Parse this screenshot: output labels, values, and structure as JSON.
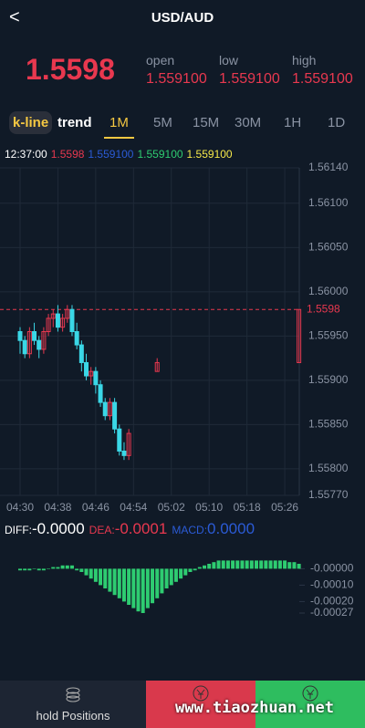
{
  "header": {
    "back": "<",
    "title": "USD/AUD"
  },
  "price": "1.5598",
  "stats": [
    {
      "label": "open",
      "value": "1.559100"
    },
    {
      "label": "low",
      "value": "1.559100"
    },
    {
      "label": "high",
      "value": "1.559100"
    }
  ],
  "tabs": [
    "k-line",
    "trend",
    "1M",
    "5M",
    "15M",
    "30M",
    "1H",
    "1D"
  ],
  "info": {
    "time": "12:37:00",
    "values": [
      {
        "text": "1.5598",
        "color": "#e8384f"
      },
      {
        "text": "1.559100",
        "color": "#2b5bd6"
      },
      {
        "text": "1.559100",
        "color": "#2ecc71"
      },
      {
        "text": "1.559100",
        "color": "#f5e84a"
      }
    ]
  },
  "chart_data": [
    {
      "type": "candlestick",
      "categories": [
        "04:30",
        null,
        null,
        null,
        null,
        null,
        null,
        null,
        "04:38",
        null,
        null,
        null,
        null,
        null,
        null,
        null,
        "04:46",
        null,
        null,
        null,
        null,
        null,
        null,
        null,
        "04:54",
        null,
        null,
        null,
        null,
        null,
        null,
        null,
        "05:02",
        null,
        null,
        null,
        null,
        null,
        null,
        null,
        "05:10",
        null,
        null,
        null,
        null,
        null,
        null,
        null,
        "05:18",
        null,
        null,
        null,
        null,
        null,
        null,
        null,
        "05:26",
        null,
        null,
        null
      ],
      "open": [
        1.55955,
        1.55945,
        1.5593,
        1.55955,
        1.55945,
        1.55935,
        1.55955,
        1.5597,
        1.55975,
        1.5596,
        1.5597,
        1.5598,
        1.55955,
        1.5594,
        1.5592,
        1.55905,
        1.5591,
        1.55895,
        1.55875,
        1.5586,
        1.55875,
        1.55845,
        1.5582,
        1.55815,
        null,
        null,
        null,
        null,
        null,
        1.5591,
        null,
        null,
        null,
        null,
        null,
        null,
        null,
        null,
        null,
        null,
        null,
        null,
        null,
        null,
        null,
        null,
        null,
        null,
        null,
        null,
        null,
        null,
        null,
        null,
        null,
        null,
        null,
        null,
        null,
        1.5592
      ],
      "high": [
        1.5596,
        1.5595,
        1.5596,
        1.55965,
        1.5595,
        1.5596,
        1.55975,
        1.5598,
        1.55985,
        1.55975,
        1.55985,
        1.55985,
        1.55965,
        1.55945,
        1.5593,
        1.55915,
        1.55915,
        1.559,
        1.5588,
        1.5588,
        1.5588,
        1.5585,
        1.5583,
        1.55845,
        null,
        null,
        null,
        null,
        null,
        1.55925,
        null,
        null,
        null,
        null,
        null,
        null,
        null,
        null,
        null,
        null,
        null,
        null,
        null,
        null,
        null,
        null,
        null,
        null,
        null,
        null,
        null,
        null,
        null,
        null,
        null,
        null,
        null,
        null,
        null,
        1.5598
      ],
      "low": [
        1.5593,
        1.55925,
        1.55925,
        1.5594,
        1.55925,
        1.5593,
        1.5595,
        1.5596,
        1.55955,
        1.55955,
        1.55965,
        1.5595,
        1.55935,
        1.5591,
        1.559,
        1.55895,
        1.55885,
        1.5587,
        1.55855,
        1.55855,
        1.5584,
        1.55815,
        1.5581,
        1.5581,
        null,
        null,
        null,
        null,
        null,
        1.5591,
        null,
        null,
        null,
        null,
        null,
        null,
        null,
        null,
        null,
        null,
        null,
        null,
        null,
        null,
        null,
        null,
        null,
        null,
        null,
        null,
        null,
        null,
        null,
        null,
        null,
        null,
        null,
        null,
        null,
        1.5592
      ],
      "close": [
        1.55945,
        1.5593,
        1.55955,
        1.55945,
        1.55935,
        1.55955,
        1.5597,
        1.55975,
        1.5596,
        1.5597,
        1.5598,
        1.55955,
        1.5594,
        1.5592,
        1.55905,
        1.5591,
        1.55895,
        1.55875,
        1.5586,
        1.55875,
        1.55845,
        1.5582,
        1.55815,
        1.5584,
        null,
        null,
        null,
        null,
        null,
        1.5592,
        null,
        null,
        null,
        null,
        null,
        null,
        null,
        null,
        null,
        null,
        null,
        null,
        null,
        null,
        null,
        null,
        null,
        null,
        null,
        null,
        null,
        null,
        null,
        null,
        null,
        null,
        null,
        null,
        null,
        1.5598
      ],
      "up_color": "#e8384f",
      "down_color": "#3ad7e6",
      "ylim": [
        1.5577,
        1.5614
      ],
      "yticks": [
        {
          "value": 1.5614,
          "label": "1.56140"
        },
        {
          "value": 1.561,
          "label": "1.56100"
        },
        {
          "value": 1.5605,
          "label": "1.56050"
        },
        {
          "value": 1.56,
          "label": "1.56000"
        },
        {
          "value": 1.5595,
          "label": "1.55950"
        },
        {
          "value": 1.559,
          "label": "1.55900"
        },
        {
          "value": 1.5585,
          "label": "1.55850"
        },
        {
          "value": 1.558,
          "label": "1.55800"
        },
        {
          "value": 1.5577,
          "label": "1.55770"
        }
      ],
      "price_line": 1.5598,
      "grid": true
    },
    {
      "type": "bar",
      "indicators": [
        {
          "label": "DIFF:",
          "value": "-0.0000",
          "color": "#ffffff"
        },
        {
          "label": "DEA:",
          "value": "-0.0001",
          "color": "#e8384f"
        },
        {
          "label": "MACD:",
          "value": "0.0000",
          "color": "#2b5bd6"
        }
      ],
      "values": [
        -1e-05,
        -1e-05,
        -1e-05,
        0,
        -1e-05,
        -1e-05,
        0,
        1e-05,
        1e-05,
        2e-05,
        2e-05,
        2e-05,
        -1e-05,
        -2e-05,
        -4e-05,
        -6e-05,
        -8e-05,
        -0.0001,
        -0.00012,
        -0.00014,
        -0.00016,
        -0.00018,
        -0.0002,
        -0.00022,
        -0.00024,
        -0.00026,
        -0.00027,
        -0.00024,
        -0.00021,
        -0.00018,
        -0.00015,
        -0.00012,
        -0.0001,
        -8e-05,
        -6e-05,
        -4e-05,
        -2e-05,
        -1e-05,
        1e-05,
        2e-05,
        3e-05,
        4e-05,
        5e-05,
        5e-05,
        5e-05,
        5e-05,
        5e-05,
        5e-05,
        5e-05,
        5e-05,
        5e-05,
        5e-05,
        5e-05,
        5e-05,
        5e-05,
        5e-05,
        5e-05,
        4e-05,
        4e-05,
        3e-05
      ],
      "color": "#2ecc71",
      "ylim": [
        -0.00037,
        0.00013
      ],
      "yticks": [
        {
          "value": 0,
          "label": "-0.00000"
        },
        {
          "value": -0.0001,
          "label": "-0.00010"
        },
        {
          "value": -0.0002,
          "label": "-0.00020"
        },
        {
          "value": -0.00027,
          "label": "-0.00027"
        }
      ]
    }
  ],
  "bottom": {
    "hold": "hold Positions",
    "watermark": "www.tiaozhuan.net"
  }
}
